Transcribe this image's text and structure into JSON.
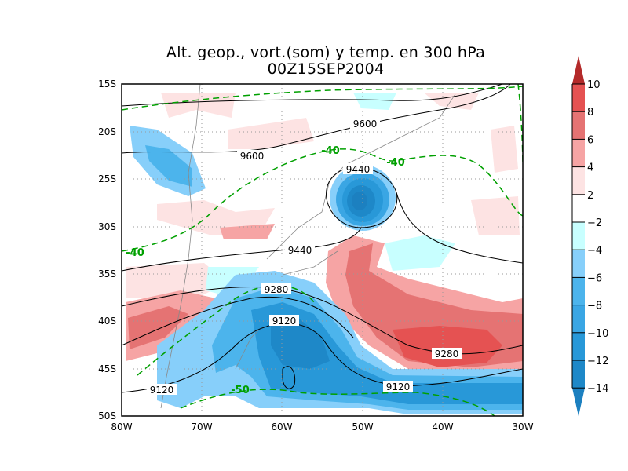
{
  "title": "Alt. geop., vort.(som) y temp. en 300 hPa",
  "subtitle": "00Z15SEP2004",
  "axes": {
    "lat_labels": [
      "15S",
      "20S",
      "25S",
      "30S",
      "35S",
      "40S",
      "45S",
      "50S"
    ],
    "lon_labels": [
      "80W",
      "70W",
      "60W",
      "50W",
      "40W",
      "30W"
    ]
  },
  "colorbar": {
    "labels": [
      "10",
      "8",
      "6",
      "4",
      "2",
      "−2",
      "−4",
      "−6",
      "−8",
      "−10",
      "−12",
      "−14"
    ],
    "colors": {
      "above_10": "#b42a2a",
      "8_10": "#e55252",
      "6_8": "#e57373",
      "4_6": "#f6a4a4",
      "2_4": "#fde3e3",
      "neutral": "#ffffff",
      "m2_m4": "#c8ffff",
      "m4_m6": "#87cffa",
      "m6_m8": "#4cb4ec",
      "m8_m10": "#3aa6e4",
      "m10_m12": "#2898d8",
      "m12_m14": "#1e88c8",
      "below_m14": "#1c80c0"
    }
  },
  "height_labels": [
    "9600",
    "9600",
    "9440",
    "9440",
    "9280",
    "9280",
    "9120",
    "9120",
    "9120"
  ],
  "temp_labels": [
    "-40",
    "-40",
    "-40",
    "-50"
  ],
  "temp_color": "#00a000"
}
